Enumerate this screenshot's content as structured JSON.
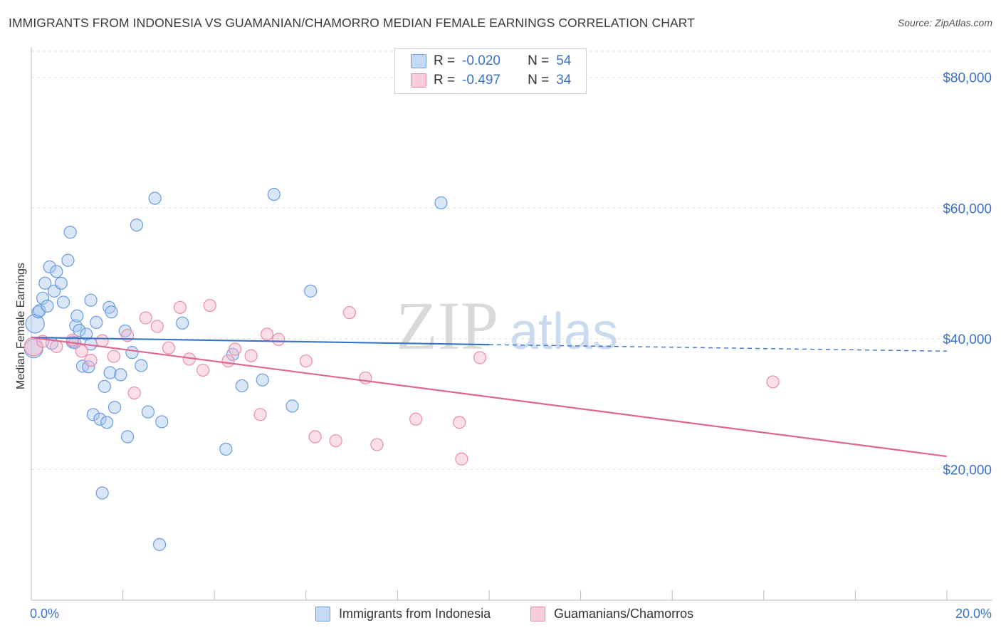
{
  "title": "IMMIGRANTS FROM INDONESIA VS GUAMANIAN/CHAMORRO MEDIAN FEMALE EARNINGS CORRELATION CHART",
  "source": "Source: ZipAtlas.com",
  "watermark": {
    "zip": "ZIP",
    "atlas": "atlas"
  },
  "legend": [
    {
      "r_label": "R =",
      "r_value": "-0.020",
      "n_label": "N =",
      "n_value": "54"
    },
    {
      "r_label": "R =",
      "r_value": "-0.497",
      "n_label": "N =",
      "n_value": "34"
    }
  ],
  "colors": {
    "blue_fill": "#a9c8f0",
    "blue_stroke": "#6a9be0",
    "blue_line": "#3a73c8",
    "pink_fill": "#f5b8cc",
    "pink_stroke": "#e98bab",
    "pink_line": "#e06593",
    "axis_text": "#3a73c8",
    "grid": "#dddddd"
  },
  "chart_data": {
    "type": "scatter",
    "title": "IMMIGRANTS FROM INDONESIA VS GUAMANIAN/CHAMORRO MEDIAN FEMALE EARNINGS CORRELATION CHART",
    "xlabel": "",
    "ylabel": "Median Female Earnings",
    "xlim": [
      0,
      20
    ],
    "ylim": [
      0,
      84000
    ],
    "x_tick_labels": [
      "0.0%",
      "20.0%"
    ],
    "y_ticks": [
      20000,
      40000,
      60000,
      80000
    ],
    "y_tick_labels": [
      "$20,000",
      "$40,000",
      "$60,000",
      "$80,000"
    ],
    "series": [
      {
        "name": "Immigrants from Indonesia",
        "r": -0.02,
        "n": 54,
        "trend": {
          "x0": 0,
          "y0": 40200,
          "x1": 10,
          "y1": 39100,
          "dash_to_x": 20,
          "dash_to_y": 38100
        },
        "points": [
          {
            "x": 0.05,
            "y": 38500
          },
          {
            "x": 0.08,
            "y": 42300
          },
          {
            "x": 0.15,
            "y": 44100
          },
          {
            "x": 0.18,
            "y": 44300
          },
          {
            "x": 0.25,
            "y": 46200
          },
          {
            "x": 0.3,
            "y": 48500
          },
          {
            "x": 0.35,
            "y": 45000
          },
          {
            "x": 0.4,
            "y": 51000
          },
          {
            "x": 0.45,
            "y": 39300
          },
          {
            "x": 0.5,
            "y": 47300
          },
          {
            "x": 0.55,
            "y": 50300
          },
          {
            "x": 0.65,
            "y": 48500
          },
          {
            "x": 0.7,
            "y": 45600
          },
          {
            "x": 0.8,
            "y": 52000
          },
          {
            "x": 0.85,
            "y": 56300
          },
          {
            "x": 0.9,
            "y": 39500
          },
          {
            "x": 0.95,
            "y": 39400
          },
          {
            "x": 0.97,
            "y": 42000
          },
          {
            "x": 1.0,
            "y": 43500
          },
          {
            "x": 1.05,
            "y": 41300
          },
          {
            "x": 1.12,
            "y": 35800
          },
          {
            "x": 1.2,
            "y": 40700
          },
          {
            "x": 1.25,
            "y": 35700
          },
          {
            "x": 1.3,
            "y": 39200
          },
          {
            "x": 1.3,
            "y": 45900
          },
          {
            "x": 1.35,
            "y": 28400
          },
          {
            "x": 1.42,
            "y": 42500
          },
          {
            "x": 1.5,
            "y": 27700
          },
          {
            "x": 1.55,
            "y": 16400
          },
          {
            "x": 1.6,
            "y": 32700
          },
          {
            "x": 1.65,
            "y": 27200
          },
          {
            "x": 1.7,
            "y": 44800
          },
          {
            "x": 1.72,
            "y": 34800
          },
          {
            "x": 1.75,
            "y": 44100
          },
          {
            "x": 1.82,
            "y": 29500
          },
          {
            "x": 1.95,
            "y": 34500
          },
          {
            "x": 2.05,
            "y": 41200
          },
          {
            "x": 2.1,
            "y": 25000
          },
          {
            "x": 2.2,
            "y": 37900
          },
          {
            "x": 2.3,
            "y": 57400
          },
          {
            "x": 2.4,
            "y": 35900
          },
          {
            "x": 2.55,
            "y": 28800
          },
          {
            "x": 2.7,
            "y": 61500
          },
          {
            "x": 2.8,
            "y": 8500
          },
          {
            "x": 2.85,
            "y": 27300
          },
          {
            "x": 3.3,
            "y": 42400
          },
          {
            "x": 4.25,
            "y": 23100
          },
          {
            "x": 4.4,
            "y": 37600
          },
          {
            "x": 4.6,
            "y": 32800
          },
          {
            "x": 5.05,
            "y": 33700
          },
          {
            "x": 5.3,
            "y": 62100
          },
          {
            "x": 5.7,
            "y": 29700
          },
          {
            "x": 6.1,
            "y": 47300
          },
          {
            "x": 8.95,
            "y": 60800
          }
        ]
      },
      {
        "name": "Guamanians/Chamorros",
        "r": -0.497,
        "n": 34,
        "trend": {
          "x0": 0,
          "y0": 40200,
          "x1": 20,
          "y1": 22000
        },
        "points": [
          {
            "x": 0.05,
            "y": 38800
          },
          {
            "x": 0.25,
            "y": 39600
          },
          {
            "x": 0.55,
            "y": 38800
          },
          {
            "x": 0.9,
            "y": 39800
          },
          {
            "x": 1.1,
            "y": 38100
          },
          {
            "x": 1.3,
            "y": 36700
          },
          {
            "x": 1.55,
            "y": 39700
          },
          {
            "x": 1.8,
            "y": 37300
          },
          {
            "x": 2.1,
            "y": 40500
          },
          {
            "x": 2.25,
            "y": 31700
          },
          {
            "x": 2.5,
            "y": 43200
          },
          {
            "x": 2.75,
            "y": 41900
          },
          {
            "x": 3.0,
            "y": 38600
          },
          {
            "x": 3.25,
            "y": 44800
          },
          {
            "x": 3.45,
            "y": 36900
          },
          {
            "x": 3.75,
            "y": 35200
          },
          {
            "x": 3.9,
            "y": 45100
          },
          {
            "x": 4.3,
            "y": 36600
          },
          {
            "x": 4.45,
            "y": 38400
          },
          {
            "x": 4.8,
            "y": 37400
          },
          {
            "x": 5.0,
            "y": 28400
          },
          {
            "x": 5.15,
            "y": 40700
          },
          {
            "x": 5.4,
            "y": 39900
          },
          {
            "x": 6.0,
            "y": 36600
          },
          {
            "x": 6.2,
            "y": 25000
          },
          {
            "x": 6.65,
            "y": 24400
          },
          {
            "x": 6.95,
            "y": 44000
          },
          {
            "x": 7.3,
            "y": 34000
          },
          {
            "x": 7.55,
            "y": 23800
          },
          {
            "x": 8.4,
            "y": 27700
          },
          {
            "x": 9.35,
            "y": 27200
          },
          {
            "x": 9.4,
            "y": 21600
          },
          {
            "x": 9.8,
            "y": 37100
          },
          {
            "x": 16.2,
            "y": 33400
          }
        ]
      }
    ]
  }
}
